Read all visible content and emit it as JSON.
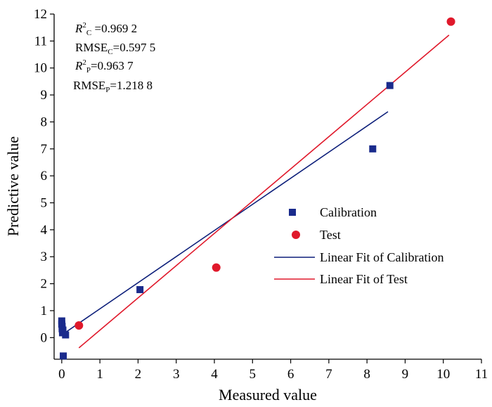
{
  "chart_data": {
    "type": "scatter",
    "xlabel": "Measured value",
    "ylabel": "Predictive value",
    "xlim": [
      -0.2,
      11
    ],
    "ylim": [
      -0.8,
      12
    ],
    "xticks": [
      0,
      1,
      2,
      3,
      4,
      5,
      6,
      7,
      8,
      9,
      10,
      11
    ],
    "yticks": [
      0,
      1,
      2,
      3,
      4,
      5,
      6,
      7,
      8,
      9,
      10,
      11,
      12
    ],
    "grid": false,
    "legend_position": "center-right",
    "stats": [
      {
        "main": "R",
        "sup": "2",
        "sub": "C",
        "rest": " =0.969 2"
      },
      {
        "main": "RMSE",
        "sup": "",
        "sub": "C",
        "rest": "=0.597 5"
      },
      {
        "main": "R",
        "sup": "2",
        "sub": "P",
        "rest": "=0.963 7"
      },
      {
        "main": "RMSE",
        "sup": "",
        "sub": "P",
        "rest": "=1.218 8"
      }
    ],
    "series": [
      {
        "name": "Calibration",
        "kind": "points",
        "marker": "square",
        "color": "#1a2b8c",
        "points": [
          [
            0.0,
            0.62
          ],
          [
            0.0,
            0.5
          ],
          [
            0.01,
            0.42
          ],
          [
            0.01,
            0.33
          ],
          [
            0.02,
            0.25
          ],
          [
            0.02,
            0.18
          ],
          [
            0.03,
            0.28
          ],
          [
            0.1,
            0.1
          ],
          [
            0.04,
            -0.68
          ],
          [
            2.05,
            1.78
          ],
          [
            8.15,
            7.0
          ],
          [
            8.6,
            9.35
          ]
        ]
      },
      {
        "name": "Test",
        "kind": "points",
        "marker": "circle",
        "color": "#e0192b",
        "points": [
          [
            0.45,
            0.45
          ],
          [
            4.05,
            2.6
          ],
          [
            10.2,
            11.72
          ]
        ]
      },
      {
        "name": "Linear Fit of Calibration",
        "kind": "line",
        "color": "#0d1f7a",
        "points": [
          [
            0.0,
            0.1
          ],
          [
            8.55,
            8.38
          ]
        ]
      },
      {
        "name": "Linear Fit of Test",
        "kind": "line",
        "color": "#e0192b",
        "points": [
          [
            0.45,
            -0.38
          ],
          [
            10.15,
            11.22
          ]
        ]
      }
    ]
  }
}
